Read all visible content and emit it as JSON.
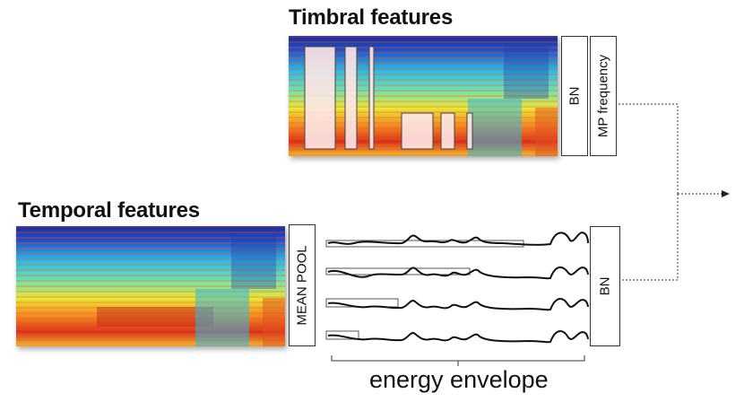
{
  "timbral": {
    "title": "Timbral features",
    "bn_label": "BN",
    "mp_label": "MP frequency"
  },
  "temporal": {
    "title": "Temporal features",
    "pool_label": "MEAN POOL",
    "bn_label": "BN",
    "caption": "energy envelope"
  },
  "colors": {
    "spec_low": "#1a2fa8",
    "spec_mid": "#2ad0e0",
    "spec_high": "#f2e02a",
    "spec_peak": "#d0201a",
    "line": "#111111",
    "arrow": "#333333"
  }
}
